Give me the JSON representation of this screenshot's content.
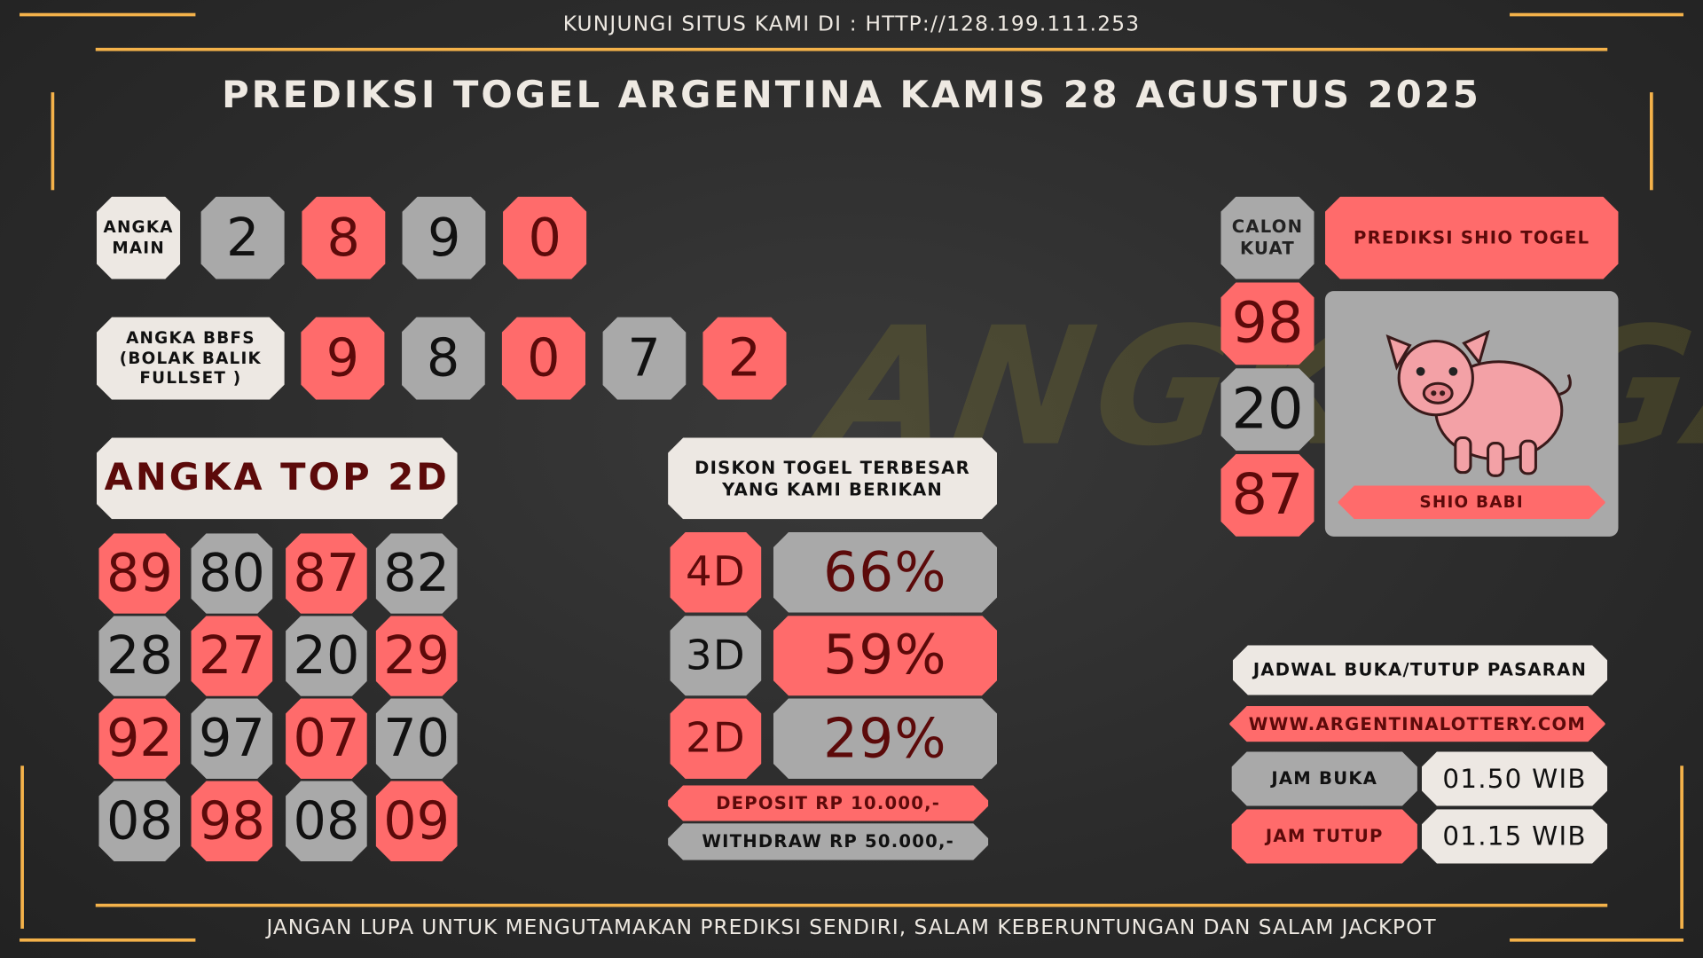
{
  "header": {
    "notice": "KUNJUNGI SITUS KAMI DI : HTTP://128.199.111.253",
    "title": "PREDIKSI TOGEL ARGENTINA KAMIS 28 AGUSTUS 2025"
  },
  "watermark": "ANGKA GAIB",
  "angka_main": {
    "label": "ANGKA MAIN",
    "digits": [
      "2",
      "8",
      "9",
      "0"
    ]
  },
  "bbfs": {
    "label": "ANGKA BBFS (BOLAK BALIK FULLSET )",
    "digits": [
      "9",
      "8",
      "0",
      "7",
      "2"
    ]
  },
  "top_2d": {
    "title": "ANGKA TOP 2D",
    "numbers": [
      "89",
      "80",
      "87",
      "82",
      "28",
      "27",
      "20",
      "29",
      "92",
      "97",
      "07",
      "70",
      "08",
      "98",
      "08",
      "09"
    ]
  },
  "diskon": {
    "title": "DISKON TOGEL TERBESAR YANG KAMI BERIKAN",
    "rows": [
      {
        "game": "4D",
        "discount": "66%"
      },
      {
        "game": "3D",
        "discount": "59%"
      },
      {
        "game": "2D",
        "discount": "29%"
      }
    ],
    "deposit": "DEPOSIT RP 10.000,-",
    "withdraw": "WITHDRAW RP 50.000,-"
  },
  "calon_kuat": {
    "label": "CALON KUAT",
    "numbers": [
      "98",
      "20",
      "87"
    ]
  },
  "shio": {
    "title": "PREDIKSI SHIO TOGEL",
    "name": "SHIO BABI"
  },
  "jadwal": {
    "title": "JADWAL BUKA/TUTUP PASARAN",
    "website": "WWW.ARGENTINALOTTERY.COM",
    "buka_label": "JAM BUKA",
    "buka": "01.50 WIB",
    "tutup_label": "JAM TUTUP",
    "tutup": "01.15 WIB"
  },
  "footer": "JANGAN LUPA UNTUK MENGUTAMAKAN PREDIKSI SENDIRI, SALAM KEBERUNTUNGAN DAN SALAM JACKPOT"
}
